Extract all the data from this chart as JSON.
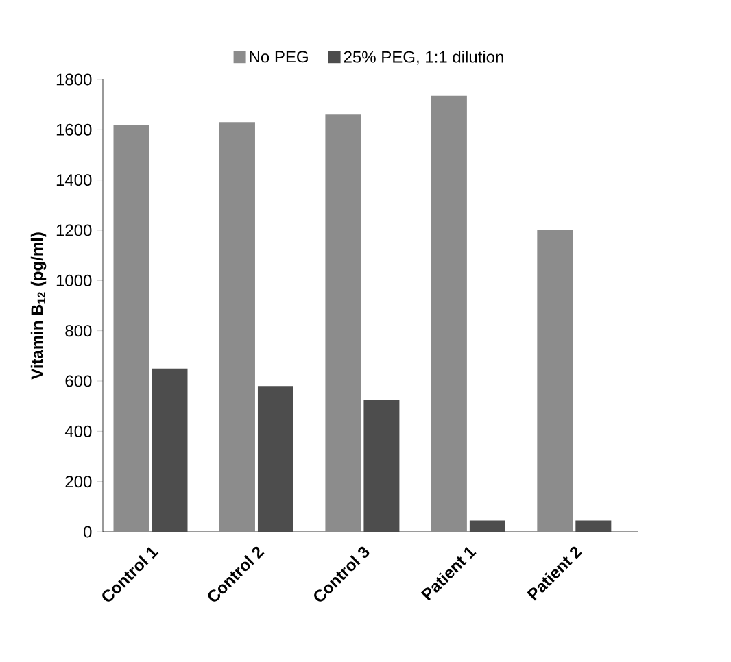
{
  "chart_data": {
    "type": "bar",
    "ylabel": "Vitamin B$_{12}$ (pg/ml)",
    "categories": [
      "Control 1",
      "Control 2",
      "Control 3",
      "Patient 1",
      "Patient 2"
    ],
    "series": [
      {
        "name": "No PEG",
        "color": "#8c8c8c",
        "values": [
          1620,
          1630,
          1660,
          1735,
          1200
        ]
      },
      {
        "name": "25% PEG, 1:1 dilution",
        "color": "#4d4d4d",
        "values": [
          650,
          580,
          525,
          45,
          45
        ]
      }
    ],
    "ylim": [
      0,
      1800
    ],
    "yticks": [
      0,
      200,
      400,
      600,
      800,
      1000,
      1200,
      1400,
      1600,
      1800
    ],
    "grid": false,
    "legend": "top"
  }
}
